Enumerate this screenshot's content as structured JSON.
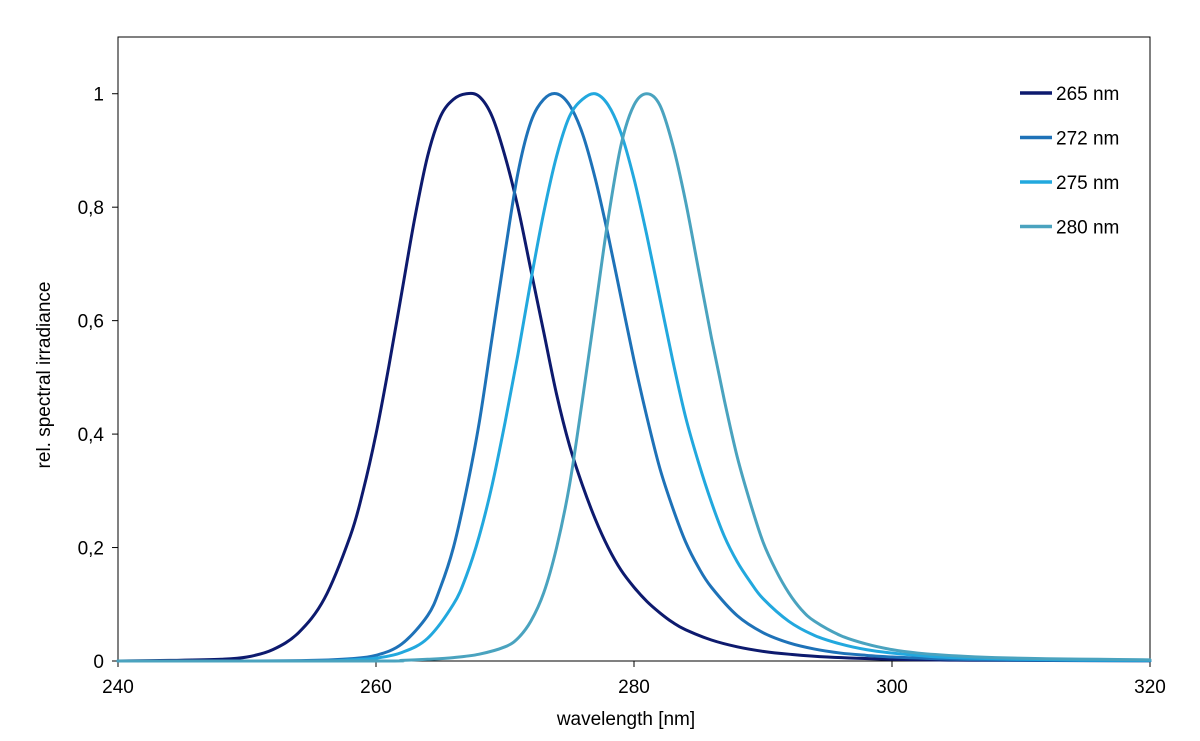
{
  "chart_data": {
    "type": "line",
    "title": "",
    "xlabel": "wavelength [nm]",
    "ylabel": "rel. spectral irradiance",
    "xlim": [
      240,
      320
    ],
    "ylim": [
      0,
      1.1
    ],
    "x_ticks": [
      240,
      260,
      280,
      300,
      320
    ],
    "x_tick_labels": [
      "240",
      "260",
      "280",
      "300",
      "320"
    ],
    "y_ticks": [
      0,
      0.2,
      0.4,
      0.6,
      0.8,
      1
    ],
    "y_tick_labels": [
      "0",
      "0,2",
      "0,4",
      "0,6",
      "0,8",
      "1"
    ],
    "grid": false,
    "legend_position": "top-right",
    "series": [
      {
        "name": "265 nm",
        "color": "#0d1a6e",
        "x": [
          240,
          244,
          248,
          250,
          252,
          254,
          256,
          258,
          259,
          260,
          261,
          262,
          263,
          264,
          265,
          266,
          267,
          268,
          269,
          270,
          271,
          272,
          273,
          274,
          275,
          276,
          277,
          278,
          279,
          280,
          281,
          282,
          283,
          284,
          286,
          288,
          290,
          292,
          295,
          300,
          305,
          310,
          320
        ],
        "values": [
          0,
          0.001,
          0.003,
          0.007,
          0.02,
          0.05,
          0.11,
          0.22,
          0.3,
          0.4,
          0.52,
          0.65,
          0.78,
          0.89,
          0.96,
          0.99,
          1.0,
          0.995,
          0.96,
          0.89,
          0.8,
          0.69,
          0.58,
          0.47,
          0.38,
          0.31,
          0.25,
          0.2,
          0.16,
          0.13,
          0.105,
          0.085,
          0.068,
          0.055,
          0.037,
          0.025,
          0.017,
          0.012,
          0.007,
          0.003,
          0.0015,
          0.001,
          0.0005
        ]
      },
      {
        "name": "272 nm",
        "color": "#1e72b8",
        "x": [
          240,
          250,
          255,
          258,
          260,
          262,
          264,
          265,
          266,
          267,
          268,
          269,
          270,
          271,
          272,
          273,
          274,
          275,
          276,
          277,
          278,
          279,
          280,
          281,
          282,
          283,
          284,
          285,
          286,
          288,
          290,
          292,
          294,
          296,
          298,
          300,
          305,
          310,
          320
        ],
        "values": [
          0,
          0,
          0.001,
          0.004,
          0.01,
          0.03,
          0.08,
          0.13,
          0.2,
          0.3,
          0.42,
          0.57,
          0.72,
          0.86,
          0.95,
          0.99,
          1.0,
          0.98,
          0.93,
          0.85,
          0.75,
          0.64,
          0.53,
          0.43,
          0.34,
          0.27,
          0.21,
          0.165,
          0.13,
          0.08,
          0.05,
          0.032,
          0.021,
          0.014,
          0.01,
          0.007,
          0.003,
          0.0015,
          0.0005
        ]
      },
      {
        "name": "275 nm",
        "color": "#22a8de",
        "x": [
          240,
          255,
          258,
          260,
          262,
          264,
          266,
          267,
          268,
          269,
          270,
          271,
          272,
          273,
          274,
          275,
          276,
          277,
          278,
          279,
          280,
          281,
          282,
          283,
          284,
          285,
          286,
          287,
          288,
          289,
          290,
          292,
          294,
          296,
          298,
          300,
          303,
          306,
          310,
          315,
          320
        ],
        "values": [
          0,
          0,
          0.002,
          0.005,
          0.015,
          0.04,
          0.1,
          0.15,
          0.22,
          0.31,
          0.42,
          0.54,
          0.67,
          0.79,
          0.89,
          0.96,
          0.99,
          1.0,
          0.98,
          0.93,
          0.85,
          0.75,
          0.64,
          0.53,
          0.43,
          0.35,
          0.28,
          0.22,
          0.175,
          0.14,
          0.11,
          0.07,
          0.045,
          0.03,
          0.02,
          0.014,
          0.008,
          0.005,
          0.003,
          0.0015,
          0.001
        ]
      },
      {
        "name": "280 nm",
        "color": "#4aa3bf",
        "x": [
          240,
          260,
          262,
          264,
          266,
          268,
          270,
          271,
          272,
          273,
          274,
          275,
          276,
          277,
          278,
          279,
          280,
          281,
          282,
          283,
          284,
          285,
          286,
          287,
          288,
          289,
          290,
          291,
          292,
          293,
          294,
          296,
          298,
          300,
          302,
          305,
          308,
          312,
          316,
          320
        ],
        "values": [
          0,
          0,
          0.001,
          0.003,
          0.006,
          0.012,
          0.025,
          0.04,
          0.07,
          0.12,
          0.2,
          0.31,
          0.46,
          0.62,
          0.78,
          0.91,
          0.98,
          1.0,
          0.98,
          0.91,
          0.81,
          0.69,
          0.57,
          0.46,
          0.36,
          0.28,
          0.21,
          0.16,
          0.12,
          0.09,
          0.07,
          0.045,
          0.03,
          0.02,
          0.014,
          0.009,
          0.006,
          0.004,
          0.003,
          0.002
        ]
      }
    ]
  }
}
